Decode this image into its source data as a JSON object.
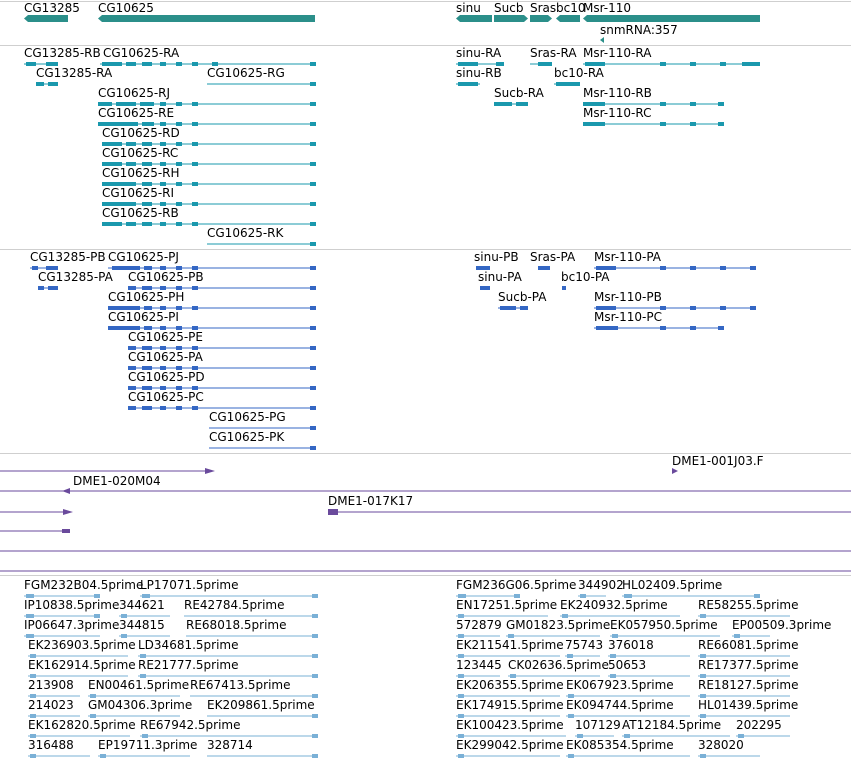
{
  "colors": {
    "gene": "#2b8f8a",
    "transcript": "#1a98ad",
    "protein": "#3467c4",
    "clone": "#6a4a9c",
    "est": "#7ab0d6",
    "separator": "#cfcfcf"
  },
  "tracks": {
    "genes": {
      "labels": [
        "CG13285",
        "CG10625",
        "sinu",
        "Sucb",
        "Sras",
        "bc10",
        "Msr-110",
        "snmRNA:357"
      ]
    },
    "transcripts": {
      "labels": [
        "CG13285-RB",
        "CG10625-RA",
        "sinu-RA",
        "Sras-RA",
        "Msr-110-RA",
        "CG13285-RA",
        "CG10625-RG",
        "sinu-RB",
        "bc10-RA",
        "CG10625-RJ",
        "Sucb-RA",
        "Msr-110-RB",
        "CG10625-RE",
        "Msr-110-RC",
        "CG10625-RD",
        "CG10625-RC",
        "CG10625-RH",
        "CG10625-RI",
        "CG10625-RB",
        "CG10625-RK"
      ]
    },
    "proteins": {
      "labels": [
        "CG13285-PB",
        "CG10625-PJ",
        "sinu-PB",
        "Sras-PA",
        "Msr-110-PA",
        "CG13285-PA",
        "CG10625-PB",
        "sinu-PA",
        "bc10-PA",
        "CG10625-PH",
        "Sucb-PA",
        "Msr-110-PB",
        "CG10625-PI",
        "Msr-110-PC",
        "CG10625-PE",
        "CG10625-PA",
        "CG10625-PD",
        "CG10625-PC",
        "CG10625-PG",
        "CG10625-PK"
      ]
    },
    "clones": {
      "labels": [
        "DME1-001J03.F",
        "DME1-020M04",
        "DME1-017K17"
      ]
    },
    "ests": {
      "labels": [
        "FGM232B04.5prime",
        "LP17071.5prime",
        "FGM236G06.5prime",
        "344902",
        "HL02409.5prime",
        "IP10838.5prime",
        "344621",
        "RE42784.5prime",
        "EN17251.5prime",
        "EK240932.5prime",
        "RE58255.5prime",
        "IP06647.3prime",
        "344815",
        "RE68018.5prime",
        "572879",
        "GM01823.5prime",
        "EK057950.5prime",
        "EP00509.3prime",
        "EK236903.5prime",
        "LD34681.5prime",
        "EK211541.5prime",
        "75743",
        "376018",
        "RE66081.5prime",
        "EK162914.5prime",
        "RE21777.5prime",
        "123445",
        "CK02636.5prime",
        "50653",
        "RE17377.5prime",
        "213908",
        "EN00461.5prime",
        "RE67413.5prime",
        "EK206355.5prime",
        "EK067923.5prime",
        "RE18127.5prime",
        "214023",
        "GM04306.3prime",
        "EK209861.5prime",
        "EK174915.5prime",
        "EK094744.5prime",
        "HL01439.5prime",
        "EK162820.5prime",
        "RE67942.5prime",
        "EK100423.5prime",
        "107129",
        "AT12184.5prime",
        "202295",
        "316488",
        "EP19711.3prime",
        "328714",
        "EK299042.5prime",
        "EK085354.5prime",
        "328020"
      ]
    }
  }
}
